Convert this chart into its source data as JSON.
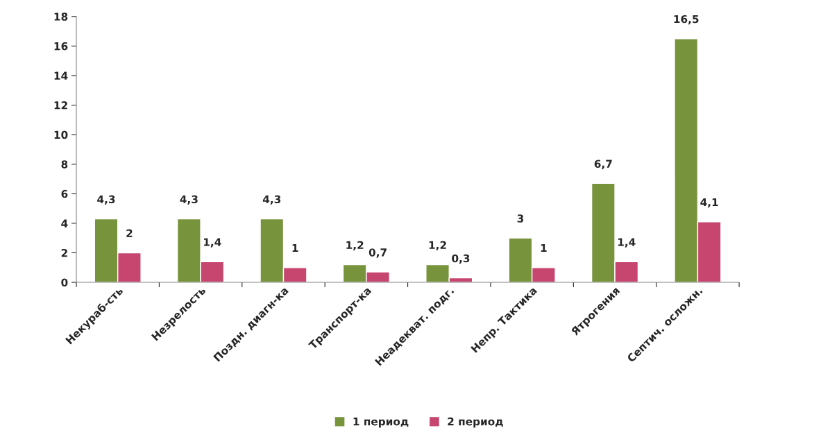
{
  "chart_data": {
    "type": "bar",
    "categories": [
      "Некураб-сть",
      "Незрелость",
      "Поздн. диагн-ка",
      "Транспорт-ка",
      "Неадекват. подг.",
      "Непр. Тактика",
      "Ятрогения",
      "Септич. осложн."
    ],
    "series": [
      {
        "name": "1 период",
        "color": "#77933c",
        "values": [
          4.3,
          4.3,
          4.3,
          1.2,
          1.2,
          3,
          6.7,
          16.5
        ],
        "value_labels": [
          "4,3",
          "4,3",
          "4,3",
          "1,2",
          "1,2",
          "3",
          "6,7",
          "16,5"
        ]
      },
      {
        "name": "2 период",
        "color": "#c6466f",
        "values": [
          2,
          1.4,
          1,
          0.7,
          0.3,
          1,
          1.4,
          4.1
        ],
        "value_labels": [
          "2",
          "1,4",
          "1",
          "0,7",
          "0,3",
          "1",
          "1,4",
          "4,1"
        ]
      }
    ],
    "ylim": [
      0,
      18
    ],
    "yticks": [
      0,
      2,
      4,
      6,
      8,
      10,
      12,
      14,
      16,
      18
    ],
    "grid": false,
    "legend": "bottom"
  }
}
